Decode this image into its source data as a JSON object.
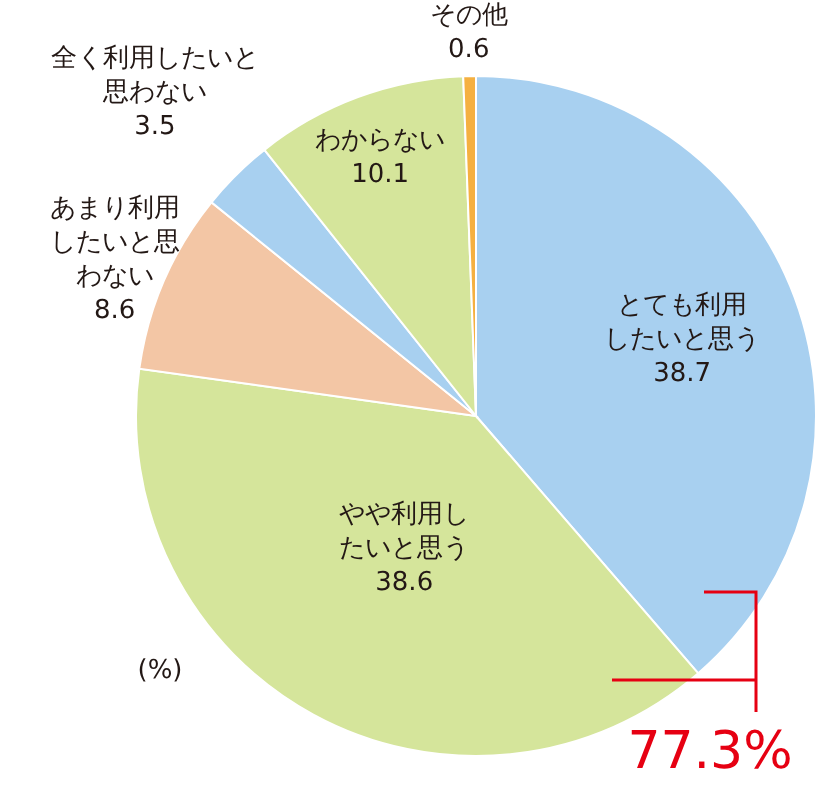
{
  "chart_data": {
    "type": "pie",
    "categories": [
      "とても利用したいと思う",
      "やや利用したいと思う",
      "あまり利用したいと思わない",
      "全く利用したいと思わない",
      "わからない",
      "その他"
    ],
    "values": [
      38.7,
      38.6,
      8.6,
      3.5,
      10.1,
      0.6
    ],
    "colors": [
      "#a8d0f0",
      "#d5e59b",
      "#f3c6a5",
      "#a8d0f0",
      "#d5e59b",
      "#f5b041"
    ],
    "data_labels": true,
    "annotations": [
      "(%)",
      "77.3%"
    ]
  }
}
